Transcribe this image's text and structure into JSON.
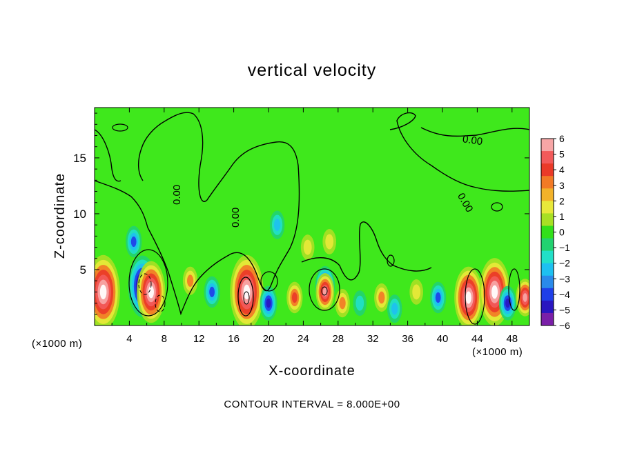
{
  "chart_data": {
    "type": "heatmap",
    "title": "vertical velocity",
    "xlabel": "X-coordinate",
    "ylabel": "Z-coordinate",
    "x_unit_left": "(×1000 m)",
    "x_unit_right": "(×1000 m)",
    "xlim": [
      0,
      50
    ],
    "ylim": [
      0,
      19.5
    ],
    "xticks": [
      "4",
      "8",
      "12",
      "16",
      "20",
      "24",
      "28",
      "32",
      "36",
      "40",
      "44",
      "48"
    ],
    "yticks": [
      "5",
      "10",
      "15"
    ],
    "colorbar": {
      "ticks": [
        "6",
        "5",
        "4",
        "3",
        "2",
        "1",
        "0",
        "−1",
        "−2",
        "−3",
        "−4",
        "−5",
        "−6"
      ],
      "range": [
        -6,
        6
      ],
      "colors": [
        "#7a1fa8",
        "#2a16c0",
        "#1f3fe8",
        "#2a8aea",
        "#1ec0f0",
        "#22e0c8",
        "#22d270",
        "#32e01a",
        "#a8e024",
        "#e8e83a",
        "#f2b22a",
        "#f27a26",
        "#ea3a28",
        "#f25a5a",
        "#f7a6a6"
      ]
    },
    "contour_label": "0.00",
    "contour_interval_text": "CONTOUR INTERVAL = 8.000E+00",
    "features": [
      {
        "x": 1.0,
        "z": 3.0,
        "w": 18
      },
      {
        "x": 5.5,
        "z": 3.5,
        "w": -14
      },
      {
        "x": 6.5,
        "z": 3.0,
        "w": 14
      },
      {
        "x": 4.5,
        "z": 7.5,
        "w": -4
      },
      {
        "x": 11.0,
        "z": 4.0,
        "w": 3
      },
      {
        "x": 13.5,
        "z": 3.0,
        "w": -4
      },
      {
        "x": 17.5,
        "z": 3.0,
        "w": 18
      },
      {
        "x": 20.0,
        "z": 2.0,
        "w": -5
      },
      {
        "x": 21.0,
        "z": 9.0,
        "w": -3
      },
      {
        "x": 23.0,
        "z": 2.5,
        "w": 4
      },
      {
        "x": 24.5,
        "z": 7.0,
        "w": 2
      },
      {
        "x": 26.5,
        "z": 3.5,
        "w": -7
      },
      {
        "x": 26.5,
        "z": 3.0,
        "w": 6
      },
      {
        "x": 27.0,
        "z": 7.5,
        "w": 2
      },
      {
        "x": 28.5,
        "z": 2.0,
        "w": 3
      },
      {
        "x": 30.5,
        "z": 2.0,
        "w": -2
      },
      {
        "x": 33.0,
        "z": 2.5,
        "w": 3
      },
      {
        "x": 34.5,
        "z": 1.5,
        "w": -3
      },
      {
        "x": 37.0,
        "z": 3.0,
        "w": 2
      },
      {
        "x": 39.5,
        "z": 2.5,
        "w": -4
      },
      {
        "x": 43.0,
        "z": 2.5,
        "w": 14
      },
      {
        "x": 46.0,
        "z": 3.0,
        "w": 16
      },
      {
        "x": 47.5,
        "z": 2.0,
        "w": -5
      },
      {
        "x": 49.5,
        "z": 2.5,
        "w": 6
      }
    ]
  }
}
